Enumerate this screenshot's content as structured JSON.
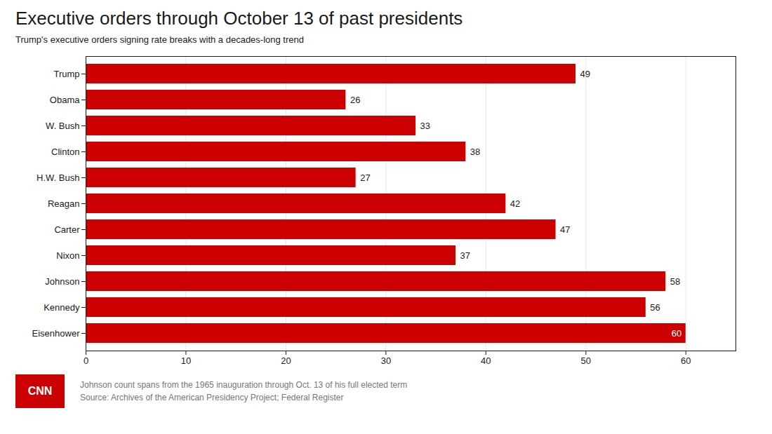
{
  "chart_data": {
    "type": "bar",
    "orientation": "horizontal",
    "title": "Executive orders through October 13 of past presidents",
    "subtitle": "Trump's executive orders signing rate breaks with a decades-long trend",
    "categories": [
      "Eisenhower",
      "Kennedy",
      "Johnson",
      "Nixon",
      "Carter",
      "Reagan",
      "H.W. Bush",
      "Clinton",
      "W. Bush",
      "Obama",
      "Trump"
    ],
    "values": [
      60,
      56,
      58,
      37,
      47,
      42,
      27,
      38,
      33,
      26,
      49
    ],
    "color": "#cc0000",
    "xlim": [
      0,
      65
    ],
    "xticks": [
      0,
      10,
      20,
      30,
      40,
      50,
      60
    ],
    "grid": true,
    "data_labels": true,
    "footnote": "Johnson count spans from the 1965 inauguration through Oct. 13 of his full elected term",
    "source": "Source: Archives of the American Presidency Project; Federal Register",
    "annotations": [
      "CNN"
    ]
  }
}
